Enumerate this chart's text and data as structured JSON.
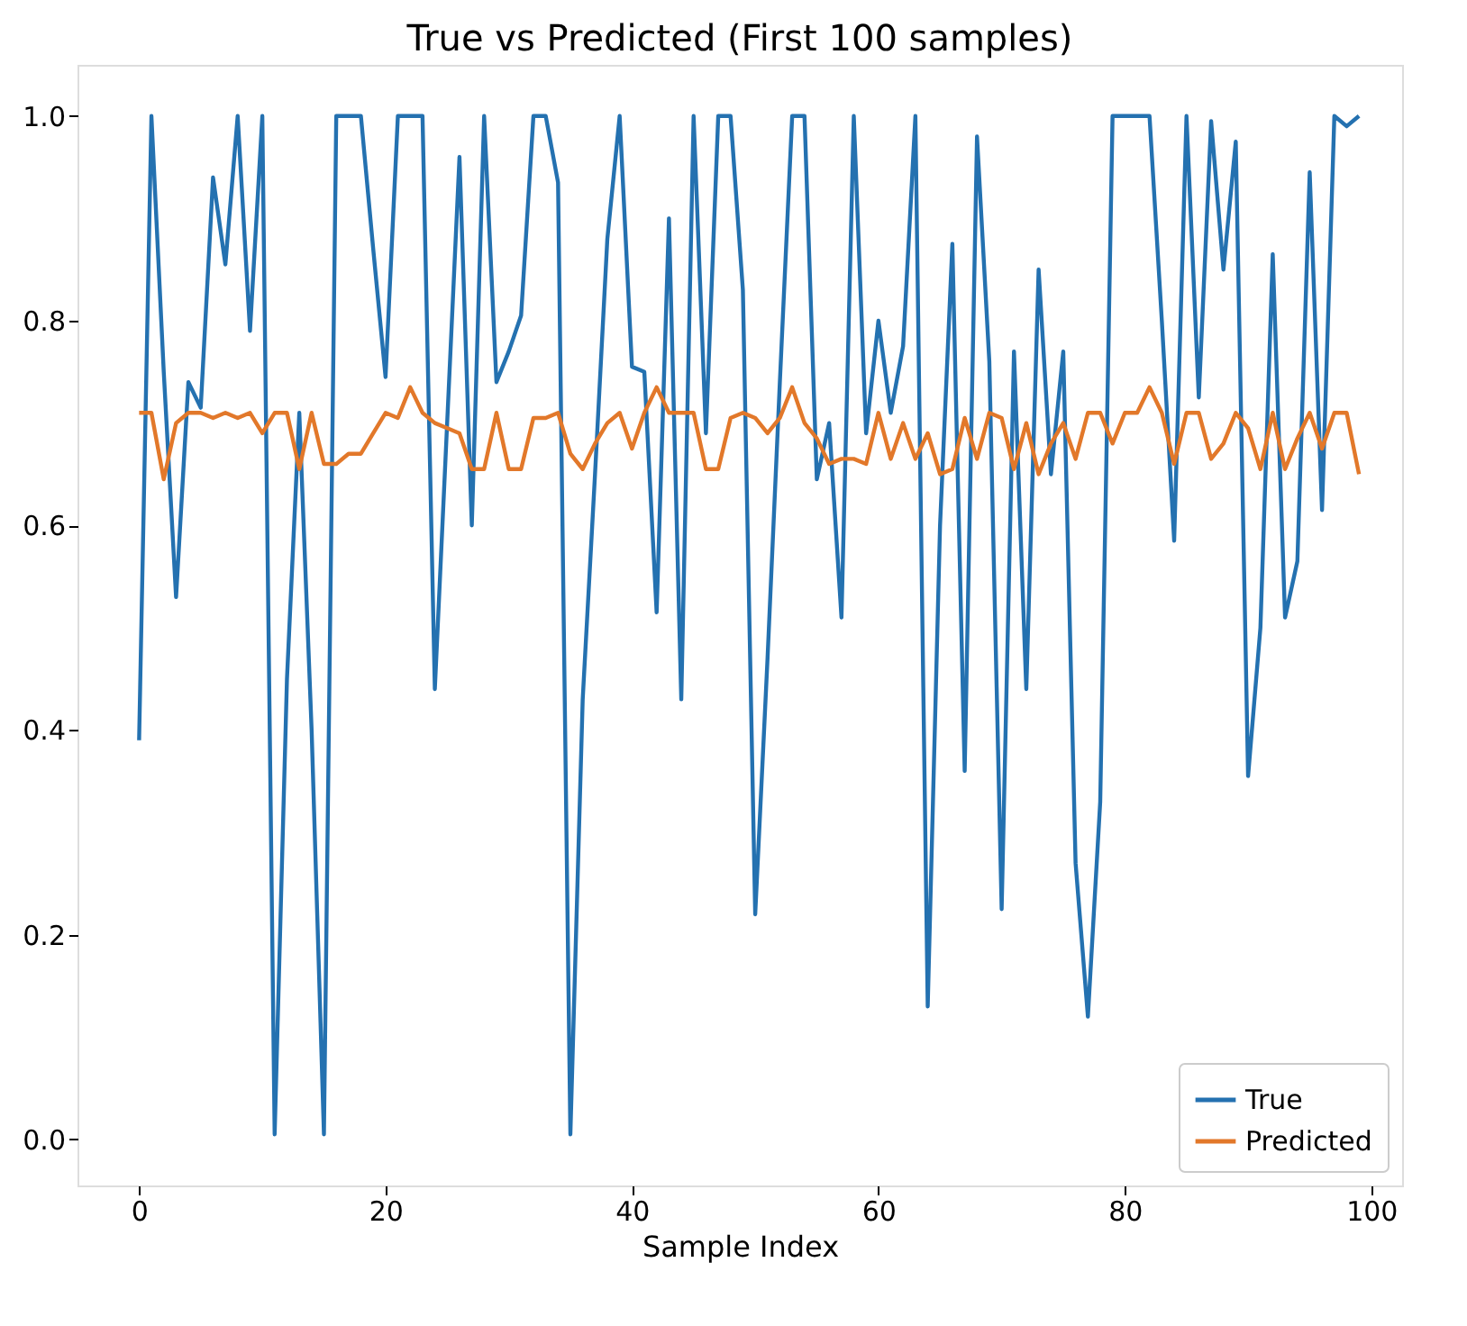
{
  "chart_data": {
    "type": "line",
    "title": "True vs Predicted (First 100 samples)",
    "xlabel": "Sample Index",
    "x": [
      0,
      1,
      2,
      3,
      4,
      5,
      6,
      7,
      8,
      9,
      10,
      11,
      12,
      13,
      14,
      15,
      16,
      17,
      18,
      19,
      20,
      21,
      22,
      23,
      24,
      25,
      26,
      27,
      28,
      29,
      30,
      31,
      32,
      33,
      34,
      35,
      36,
      37,
      38,
      39,
      40,
      41,
      42,
      43,
      44,
      45,
      46,
      47,
      48,
      49,
      50,
      51,
      52,
      53,
      54,
      55,
      56,
      57,
      58,
      59,
      60,
      61,
      62,
      63,
      64,
      65,
      66,
      67,
      68,
      69,
      70,
      71,
      72,
      73,
      74,
      75,
      76,
      77,
      78,
      79,
      80,
      81,
      82,
      83,
      84,
      85,
      86,
      87,
      88,
      89,
      90,
      91,
      92,
      93,
      94,
      95,
      96,
      97,
      98,
      99
    ],
    "series": [
      {
        "name": "True",
        "color": "#2471b0",
        "values": [
          0.39,
          1.0,
          0.75,
          0.53,
          0.74,
          0.715,
          0.94,
          0.855,
          1.0,
          0.79,
          1.0,
          0.005,
          0.45,
          0.71,
          0.4,
          0.005,
          1.0,
          1.0,
          1.0,
          0.87,
          0.745,
          1.0,
          1.0,
          1.0,
          0.44,
          0.7,
          0.96,
          0.6,
          1.0,
          0.74,
          0.77,
          0.805,
          1.0,
          1.0,
          0.935,
          0.005,
          0.43,
          0.65,
          0.88,
          1.0,
          0.755,
          0.75,
          0.515,
          0.9,
          0.43,
          1.0,
          0.69,
          1.0,
          1.0,
          0.83,
          0.22,
          0.47,
          0.74,
          1.0,
          1.0,
          0.645,
          0.7,
          0.51,
          1.0,
          0.69,
          0.8,
          0.71,
          0.775,
          1.0,
          0.13,
          0.6,
          0.875,
          0.36,
          0.98,
          0.76,
          0.225,
          0.77,
          0.44,
          0.85,
          0.65,
          0.77,
          0.27,
          0.12,
          0.33,
          1.0,
          1.0,
          1.0,
          1.0,
          0.8,
          0.585,
          1.0,
          0.725,
          0.995,
          0.85,
          0.975,
          0.355,
          0.5,
          0.865,
          0.51,
          0.565,
          0.945,
          0.615,
          1.0,
          0.99,
          1.0
        ]
      },
      {
        "name": "Predicted",
        "color": "#e2782a",
        "values": [
          0.71,
          0.71,
          0.645,
          0.7,
          0.71,
          0.71,
          0.705,
          0.71,
          0.705,
          0.71,
          0.69,
          0.71,
          0.71,
          0.655,
          0.71,
          0.66,
          0.66,
          0.67,
          0.67,
          0.69,
          0.71,
          0.705,
          0.735,
          0.71,
          0.7,
          0.695,
          0.69,
          0.655,
          0.655,
          0.71,
          0.655,
          0.655,
          0.705,
          0.705,
          0.71,
          0.67,
          0.655,
          0.68,
          0.7,
          0.71,
          0.675,
          0.71,
          0.735,
          0.71,
          0.71,
          0.71,
          0.655,
          0.655,
          0.705,
          0.71,
          0.705,
          0.69,
          0.705,
          0.735,
          0.7,
          0.685,
          0.66,
          0.665,
          0.665,
          0.66,
          0.71,
          0.665,
          0.7,
          0.665,
          0.69,
          0.65,
          0.655,
          0.705,
          0.665,
          0.71,
          0.705,
          0.655,
          0.7,
          0.65,
          0.68,
          0.7,
          0.665,
          0.71,
          0.71,
          0.68,
          0.71,
          0.71,
          0.735,
          0.71,
          0.66,
          0.71,
          0.71,
          0.665,
          0.68,
          0.71,
          0.695,
          0.655,
          0.71,
          0.655,
          0.685,
          0.71,
          0.675,
          0.71,
          0.71,
          0.65
        ]
      }
    ],
    "xlim": [
      -5,
      102.5
    ],
    "ylim": [
      -0.045,
      1.05
    ],
    "xticks": [
      0,
      20,
      40,
      60,
      80,
      100
    ],
    "yticks": [
      {
        "value": 0,
        "label": "0.0"
      },
      {
        "value": 0.2,
        "label": "0.2"
      },
      {
        "value": 0.4,
        "label": "0.4"
      },
      {
        "value": 0.6,
        "label": "0.6"
      },
      {
        "value": 0.8,
        "label": "0.8"
      },
      {
        "value": 1.0,
        "label": "1.0"
      }
    ],
    "grid": false,
    "legend": "bottom right",
    "line_style": "solid",
    "marker": "none"
  }
}
